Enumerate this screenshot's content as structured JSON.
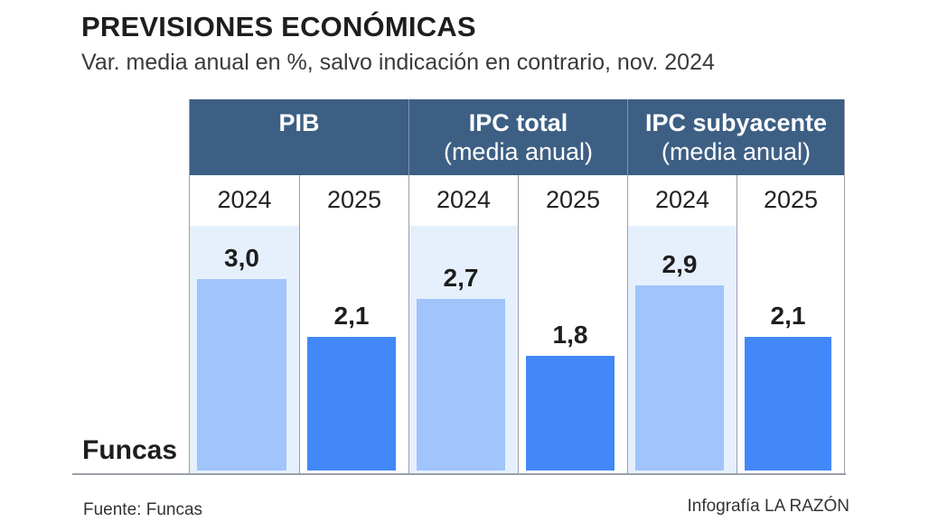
{
  "chart_data": {
    "type": "bar",
    "title": "PREVISIONES ECONÓMICAS",
    "subtitle": "Var. media anual en %, salvo indicación en contrario, nov. 2024",
    "row_label": "Funcas",
    "groups": [
      {
        "name": "PIB",
        "note": "",
        "years": [
          "2024",
          "2025"
        ],
        "values": [
          3.0,
          2.1
        ],
        "labels": [
          "3,0",
          "2,1"
        ]
      },
      {
        "name": "IPC total",
        "note": "(media anual)",
        "years": [
          "2024",
          "2025"
        ],
        "values": [
          2.7,
          1.8
        ],
        "labels": [
          "2,7",
          "1,8"
        ]
      },
      {
        "name": "IPC subyacente",
        "note": "(media anual)",
        "years": [
          "2024",
          "2025"
        ],
        "values": [
          2.9,
          2.1
        ],
        "labels": [
          "2,9",
          "2,1"
        ]
      }
    ],
    "ylim": [
      0,
      3.8
    ],
    "colors": {
      "2024": "#a0c4fb",
      "2025": "#4388f9",
      "header": "#3d5f84",
      "highlight_col": "#e6f0fd"
    },
    "source": "Fuente: Funcas",
    "credit": "Infografía LA RAZÓN"
  }
}
